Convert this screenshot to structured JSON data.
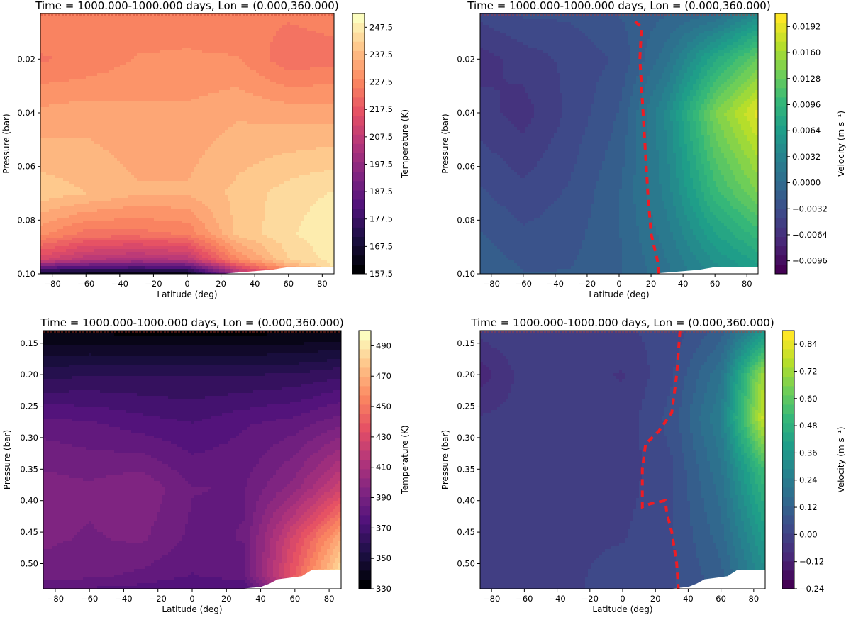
{
  "chart_data": [
    {
      "type": "heatmap",
      "title": "Time = 1000.000-1000.000 days, Lon = (0.000,360.000)",
      "xlabel": "Latitude (deg)",
      "ylabel": "Pressure (bar)",
      "colorbar_label": "Temperature (K)",
      "colormap": "magma",
      "xlim": [
        -87,
        87
      ],
      "ylim": [
        0.1,
        0.003
      ],
      "x_ticks": [
        -80,
        -60,
        -40,
        -20,
        0,
        20,
        40,
        60,
        80
      ],
      "y_ticks": [
        0.02,
        0.04,
        0.06,
        0.08,
        0.1
      ],
      "y_tick_labels": [
        "0.02",
        "0.04",
        "0.06",
        "0.08",
        "0.10"
      ],
      "color_range": [
        157.5,
        252.5
      ],
      "colorbar_ticks": [
        "247.5",
        "237.5",
        "227.5",
        "217.5",
        "207.5",
        "197.5",
        "187.5",
        "177.5",
        "167.5",
        "157.5"
      ],
      "colorbar_tick_values": [
        247.5,
        237.5,
        227.5,
        217.5,
        207.5,
        197.5,
        187.5,
        177.5,
        167.5,
        157.5
      ],
      "x": [
        -87,
        -60,
        -30,
        0,
        30,
        60,
        87
      ],
      "y": [
        0.003,
        0.02,
        0.04,
        0.07,
        0.085,
        0.095,
        0.1
      ],
      "z": [
        [
          228,
          227,
          227,
          228,
          226,
          226,
          227
        ],
        [
          225,
          226,
          229,
          229,
          229,
          223,
          224
        ],
        [
          233,
          234,
          233,
          233,
          235,
          234,
          234
        ],
        [
          241,
          239,
          236,
          236,
          240,
          244,
          246
        ],
        [
          230,
          224,
          224,
          226,
          240,
          245,
          249
        ],
        [
          212,
          205,
          202,
          205,
          228,
          242,
          247
        ],
        [
          162,
          162,
          162,
          162,
          200,
          225,
          245
        ]
      ],
      "masked_region": {
        "lat": [
          20,
          30,
          40,
          50,
          55,
          60,
          87
        ],
        "p_top": [
          0.1,
          0.0995,
          0.099,
          0.0985,
          0.098,
          0.0975,
          0.0975
        ]
      }
    },
    {
      "type": "heatmap",
      "title": "Time = 1000.000-1000.000 days, Lon = (0.000,360.000)",
      "xlabel": "Latitude (deg)",
      "ylabel": "Pressure (bar)",
      "colorbar_label": "Velocity (m s⁻¹)",
      "colormap": "viridis",
      "xlim": [
        -87,
        87
      ],
      "ylim": [
        0.1,
        0.003
      ],
      "x_ticks": [
        -80,
        -60,
        -40,
        -20,
        0,
        20,
        40,
        60,
        80
      ],
      "y_ticks": [
        0.02,
        0.04,
        0.06,
        0.08,
        0.1
      ],
      "y_tick_labels": [
        "0.02",
        "0.04",
        "0.06",
        "0.08",
        "0.10"
      ],
      "color_range": [
        -0.0112,
        0.0208
      ],
      "colorbar_ticks": [
        "0.0192",
        "0.0160",
        "0.0128",
        "0.0096",
        "0.0064",
        "0.0032",
        "0.0000",
        "−0.0032",
        "−0.0064",
        "−0.0096"
      ],
      "colorbar_tick_values": [
        0.0192,
        0.016,
        0.0128,
        0.0096,
        0.0064,
        0.0032,
        0.0,
        -0.0032,
        -0.0064,
        -0.0096
      ],
      "x": [
        -87,
        -60,
        -30,
        0,
        30,
        60,
        87
      ],
      "y": [
        0.003,
        0.02,
        0.04,
        0.07,
        0.1
      ],
      "z": [
        [
          -0.004,
          -0.003,
          -0.003,
          -0.002,
          -0.001,
          0.0,
          0.004
        ],
        [
          -0.006,
          -0.005,
          -0.004,
          -0.003,
          0.001,
          0.008,
          0.013
        ],
        [
          -0.005,
          -0.006,
          -0.004,
          -0.002,
          0.004,
          0.014,
          0.019
        ],
        [
          -0.003,
          -0.004,
          -0.003,
          -0.001,
          0.003,
          0.01,
          0.014
        ],
        [
          -0.001,
          -0.002,
          -0.002,
          -0.001,
          0.001,
          0.004,
          0.006
        ]
      ],
      "dashed_line": {
        "lat": [
          10,
          14,
          13,
          15,
          18,
          20,
          24,
          25
        ],
        "p": [
          0.006,
          0.008,
          0.02,
          0.04,
          0.07,
          0.085,
          0.095,
          0.1
        ]
      },
      "masked_region": {
        "lat": [
          20,
          30,
          40,
          50,
          55,
          60,
          87
        ],
        "p_top": [
          0.1,
          0.0995,
          0.099,
          0.0985,
          0.098,
          0.0975,
          0.0975
        ]
      }
    },
    {
      "type": "heatmap",
      "title": "Time = 1000.000-1000.000 days, Lon = (0.000,360.000)",
      "xlabel": "Latitude (deg)",
      "ylabel": "Pressure (bar)",
      "colorbar_label": "Temperature (K)",
      "colormap": "magma",
      "xlim": [
        -87,
        87
      ],
      "ylim": [
        0.54,
        0.13
      ],
      "x_ticks": [
        -80,
        -60,
        -40,
        -20,
        0,
        20,
        40,
        60,
        80
      ],
      "y_ticks": [
        0.15,
        0.2,
        0.25,
        0.3,
        0.35,
        0.4,
        0.45,
        0.5
      ],
      "y_tick_labels": [
        "0.15",
        "0.20",
        "0.25",
        "0.30",
        "0.35",
        "0.40",
        "0.45",
        "0.50"
      ],
      "color_range": [
        330,
        500
      ],
      "colorbar_ticks": [
        "490",
        "470",
        "450",
        "430",
        "410",
        "390",
        "370",
        "350",
        "330"
      ],
      "colorbar_tick_values": [
        490,
        470,
        450,
        430,
        410,
        390,
        370,
        350,
        330
      ],
      "x": [
        -87,
        -60,
        -30,
        0,
        30,
        60,
        87
      ],
      "y": [
        0.13,
        0.2,
        0.28,
        0.38,
        0.46,
        0.52,
        0.54
      ],
      "z": [
        [
          335,
          334,
          333,
          333,
          333,
          334,
          335
        ],
        [
          358,
          360,
          360,
          360,
          360,
          361,
          365
        ],
        [
          382,
          380,
          376,
          373,
          378,
          382,
          390
        ],
        [
          394,
          392,
          396,
          385,
          384,
          400,
          425
        ],
        [
          392,
          390,
          392,
          383,
          385,
          430,
          470
        ],
        [
          388,
          386,
          383,
          378,
          382,
          440,
          490
        ],
        [
          380,
          378,
          376,
          372,
          372,
          420,
          480
        ]
      ],
      "masked_region": {
        "lat": [
          28,
          40,
          45,
          50,
          64,
          70,
          87
        ],
        "p_top": [
          0.54,
          0.537,
          0.532,
          0.525,
          0.52,
          0.51,
          0.51
        ]
      }
    },
    {
      "type": "heatmap",
      "title": "Time = 1000.000-1000.000 days, Lon = (0.000,360.000)",
      "xlabel": "Latitude (deg)",
      "ylabel": "Pressure (bar)",
      "colorbar_label": "Velocity (m s⁻¹)",
      "colormap": "viridis",
      "xlim": [
        -87,
        87
      ],
      "ylim": [
        0.54,
        0.13
      ],
      "x_ticks": [
        -80,
        -60,
        -40,
        -20,
        0,
        20,
        40,
        60,
        80
      ],
      "y_ticks": [
        0.15,
        0.2,
        0.25,
        0.3,
        0.35,
        0.4,
        0.45,
        0.5
      ],
      "y_tick_labels": [
        "0.15",
        "0.20",
        "0.25",
        "0.30",
        "0.35",
        "0.40",
        "0.45",
        "0.50"
      ],
      "color_range": [
        -0.24,
        0.9
      ],
      "colorbar_ticks": [
        "0.84",
        "0.72",
        "0.60",
        "0.48",
        "0.36",
        "0.24",
        "0.12",
        "0.00",
        "−0.12",
        "−0.24"
      ],
      "colorbar_tick_values": [
        0.84,
        0.72,
        0.6,
        0.48,
        0.36,
        0.24,
        0.12,
        0.0,
        -0.12,
        -0.24
      ],
      "x": [
        -87,
        -60,
        -30,
        0,
        30,
        60,
        87
      ],
      "y": [
        0.13,
        0.2,
        0.27,
        0.35,
        0.45,
        0.54
      ],
      "z": [
        [
          -0.02,
          0.0,
          0.0,
          0.0,
          0.02,
          0.1,
          0.35
        ],
        [
          -0.1,
          -0.02,
          -0.02,
          -0.04,
          0.04,
          0.2,
          0.75
        ],
        [
          -0.03,
          -0.02,
          -0.02,
          -0.02,
          0.06,
          0.25,
          0.82
        ],
        [
          -0.02,
          0.0,
          0.0,
          -0.02,
          0.04,
          0.2,
          0.55
        ],
        [
          0.0,
          0.0,
          0.0,
          0.0,
          0.04,
          0.15,
          0.4
        ],
        [
          0.0,
          0.0,
          0.0,
          0.02,
          0.04,
          0.1,
          0.3
        ]
      ],
      "dashed_line": {
        "lat": [
          35,
          33,
          32,
          30,
          22,
          14,
          12,
          12,
          17,
          26,
          27,
          30,
          33,
          34
        ],
        "p": [
          0.13,
          0.2,
          0.22,
          0.26,
          0.29,
          0.31,
          0.35,
          0.41,
          0.405,
          0.4,
          0.42,
          0.45,
          0.5,
          0.54
        ]
      },
      "masked_region": {
        "lat": [
          28,
          40,
          45,
          50,
          64,
          70,
          87
        ],
        "p_top": [
          0.54,
          0.537,
          0.532,
          0.525,
          0.52,
          0.51,
          0.51
        ]
      }
    }
  ]
}
